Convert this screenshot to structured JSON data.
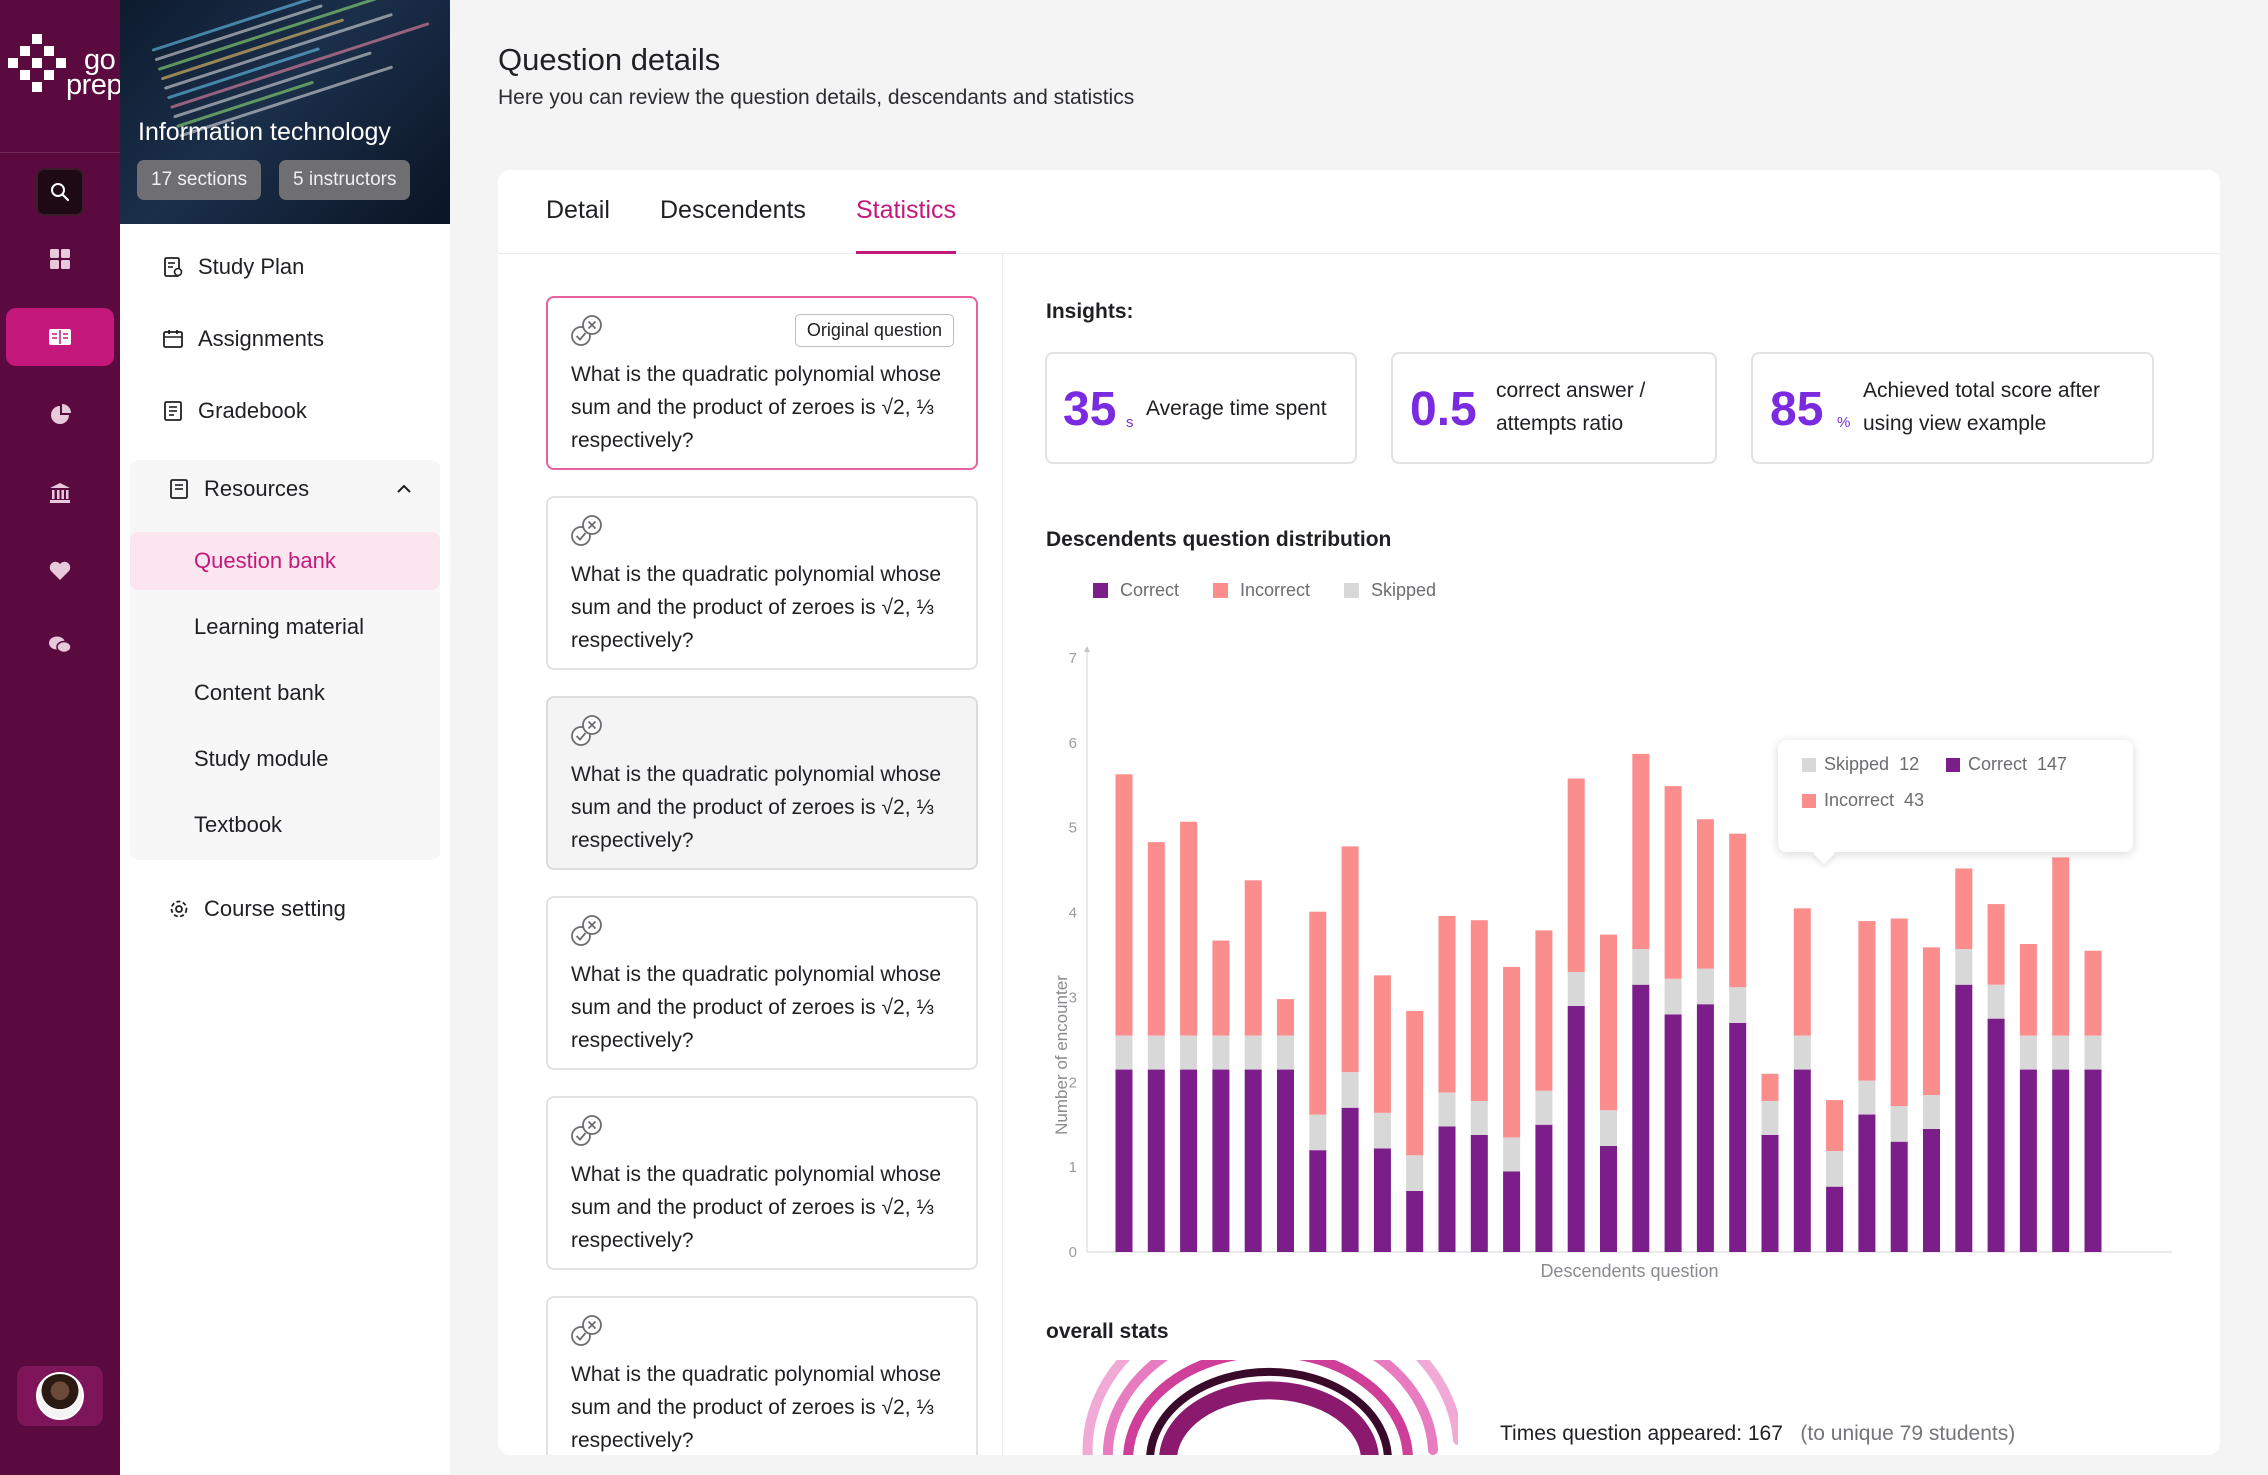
{
  "brand": {
    "logo_top": "go",
    "logo_bottom": "prep",
    "accent": "#c4187d",
    "rail_bg": "#5b0a3f"
  },
  "rail": {
    "items": [
      "dashboard-icon",
      "course-book-icon",
      "analytics-icon",
      "institution-icon",
      "favorites-icon",
      "chat-icon"
    ],
    "active": "course-book-icon"
  },
  "course": {
    "title": "Information technology",
    "sections_chip": "17 sections",
    "instructors_chip": "5 instructors",
    "nav": {
      "study_plan": "Study Plan",
      "assignments": "Assignments",
      "gradebook": "Gradebook",
      "resources": "Resources",
      "course_setting": "Course setting"
    },
    "resources": [
      "Question bank",
      "Learning material",
      "Content bank",
      "Study module",
      "Textbook"
    ],
    "active_resource": "Question bank"
  },
  "page": {
    "title": "Question details",
    "subtitle": "Here you can review the question details, descendants and statistics"
  },
  "tabs": [
    "Detail",
    "Descendents",
    "Statistics"
  ],
  "active_tab": "Statistics",
  "questions": {
    "original_badge": "Original question",
    "items": [
      "What is the quadratic polynomial whose sum and the product of zeroes is √2, ⅓ respectively?",
      "What is the quadratic polynomial whose sum and the product of zeroes is √2, ⅓ respectively?",
      "What is the quadratic polynomial whose sum and the product of zeroes is √2, ⅓ respectively?",
      "What is the quadratic polynomial whose sum and the product of zeroes is √2, ⅓ respectively?",
      "What is the quadratic polynomial whose sum and the product of zeroes is √2, ⅓ respectively?",
      "What is the quadratic polynomial whose sum and the product of zeroes is √2, ⅓ respectively?"
    ]
  },
  "insights": {
    "title": "Insights:",
    "cards": [
      {
        "value": "35",
        "unit": "s",
        "label": "Average time spent"
      },
      {
        "value": "0.5",
        "unit": "",
        "label": "correct answer / attempts ratio"
      },
      {
        "value": "85",
        "unit": "%",
        "label": "Achieved total score after using view example"
      }
    ]
  },
  "distribution": {
    "title": "Descendents question distribution",
    "tooltip": {
      "skipped_label": "Skipped",
      "skipped_value": "12",
      "correct_label": "Correct",
      "correct_value": "147",
      "incorrect_label": "Incorrect",
      "incorrect_value": "43"
    }
  },
  "chart_data": {
    "type": "bar",
    "stacked": true,
    "xlabel": "Descendents question",
    "ylabel": "Number of encounter",
    "ylim": [
      0,
      7
    ],
    "yticks": [
      0,
      1,
      2,
      3,
      4,
      5,
      6,
      7
    ],
    "legend_position": "top-left",
    "grid": false,
    "colors": {
      "Correct": "#7b1e8a",
      "Incorrect": "#fb8d8d",
      "Skipped": "#d8d8d8"
    },
    "series": [
      {
        "name": "Correct",
        "values": [
          2.15,
          2.15,
          2.15,
          2.15,
          2.15,
          2.15,
          1.2,
          1.7,
          1.22,
          0.72,
          1.48,
          1.38,
          0.95,
          1.5,
          2.9,
          1.25,
          3.15,
          2.8,
          2.92,
          2.7,
          1.38,
          2.15,
          0.77,
          1.62,
          1.3,
          1.45,
          3.15,
          2.75,
          2.15,
          2.15,
          2.15
        ]
      },
      {
        "name": "Skipped",
        "values": [
          0.4,
          0.4,
          0.4,
          0.4,
          0.4,
          0.4,
          0.42,
          0.42,
          0.42,
          0.42,
          0.4,
          0.4,
          0.4,
          0.4,
          0.4,
          0.42,
          0.42,
          0.42,
          0.42,
          0.42,
          0.4,
          0.4,
          0.42,
          0.4,
          0.42,
          0.4,
          0.42,
          0.4,
          0.4,
          0.4,
          0.4
        ]
      },
      {
        "name": "Incorrect",
        "values": [
          3.08,
          2.28,
          2.52,
          1.12,
          1.83,
          0.43,
          2.39,
          2.66,
          1.62,
          1.7,
          2.08,
          2.13,
          2.01,
          1.89,
          2.28,
          2.07,
          2.3,
          2.27,
          1.76,
          1.81,
          0.32,
          1.5,
          0.6,
          1.88,
          2.21,
          1.74,
          0.95,
          0.95,
          1.08,
          2.1,
          1.0
        ]
      }
    ]
  },
  "overall": {
    "title": "overall stats",
    "times_label": "Times question appeared: 167",
    "unique_label": "(to unique 79 students)"
  }
}
